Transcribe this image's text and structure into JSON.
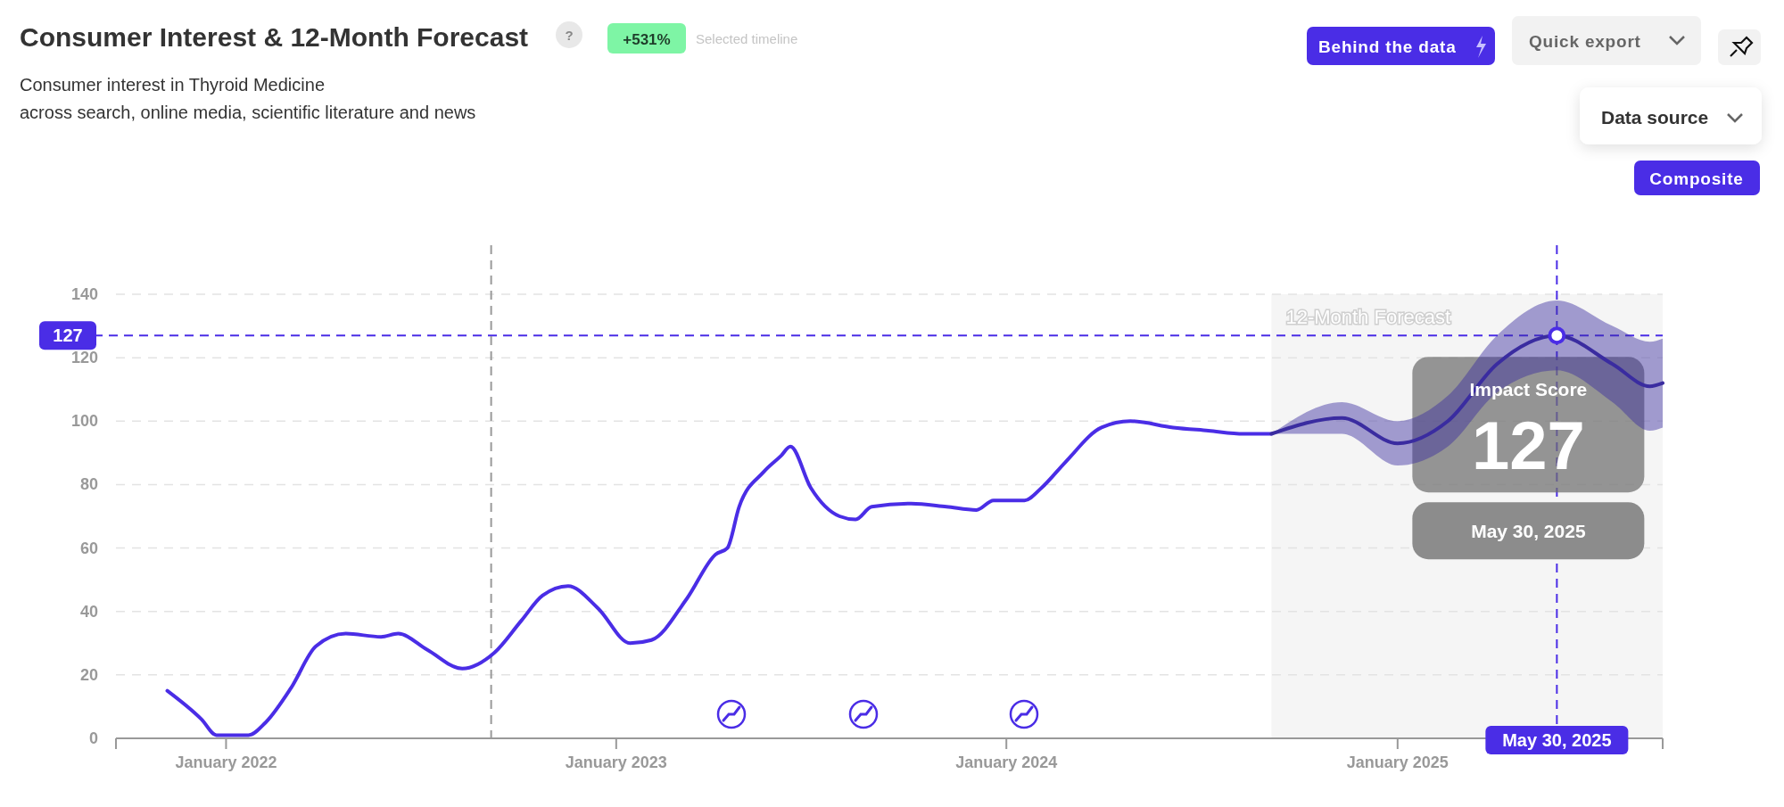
{
  "chart_data": {
    "type": "line",
    "title": "Consumer Interest & 12-Month Forecast",
    "subtitle": "Consumer interest in Thyroid Medicine\nacross search, online media, scientific literature and news",
    "xlim": [
      "2021-09-20",
      "2025-09-06"
    ],
    "xticks": [
      {
        "value": "2022-01-01",
        "label": "January 2022"
      },
      {
        "value": "2023-01-01",
        "label": "January 2023"
      },
      {
        "value": "2024-01-01",
        "label": "January 2024"
      },
      {
        "value": "2025-01-01",
        "label": "January 2025"
      }
    ],
    "ylim": [
      0,
      140
    ],
    "yticks": [
      0,
      20,
      40,
      60,
      80,
      100,
      120,
      140
    ],
    "grid": "y",
    "line_style": "solid",
    "series": [
      {
        "color": "#4a2de6",
        "x": [
          "2021-11-07",
          "2021-12-09",
          "2021-12-23",
          "2022-01-22",
          "2022-02-07",
          "2022-03-03",
          "2022-03-26",
          "2022-04-23",
          "2022-05-26",
          "2022-06-11",
          "2022-07-08",
          "2022-08-10",
          "2022-09-09",
          "2022-10-04",
          "2022-10-24",
          "2022-11-17",
          "2022-12-15",
          "2023-01-14",
          "2023-02-03",
          "2023-03-08",
          "2023-04-04",
          "2023-04-15",
          "2023-04-26",
          "2023-05-19",
          "2023-06-04",
          "2023-06-13",
          "2023-07-02",
          "2023-07-29",
          "2023-08-13",
          "2023-08-28",
          "2023-10-04",
          "2023-11-06",
          "2023-12-04",
          "2023-12-20",
          "2024-01-18",
          "2024-02-03",
          "2024-02-25",
          "2024-03-30",
          "2024-04-26",
          "2024-06-05",
          "2024-07-08",
          "2024-08-10",
          "2024-09-05"
        ],
        "values": [
          15,
          6,
          1,
          1,
          5,
          16,
          29,
          33,
          32,
          33,
          28,
          22,
          27,
          37,
          45,
          48,
          41,
          30,
          31,
          44,
          58,
          60,
          73,
          84,
          89,
          92,
          79,
          70,
          69,
          73,
          74,
          73,
          72,
          75,
          75,
          79,
          87,
          98,
          100,
          98,
          97,
          96,
          96
        ]
      },
      {
        "color": "#3a2ca0",
        "x": [
          "2024-09-05",
          "2024-11-10",
          "2025-01-01",
          "2025-02-17",
          "2025-04-04",
          "2025-05-30",
          "2025-07-21",
          "2025-08-25",
          "2025-09-06"
        ],
        "values": [
          96,
          101,
          93,
          100,
          118,
          127,
          118,
          111,
          112
        ],
        "lower": [
          96,
          96,
          86,
          92,
          109,
          116,
          106,
          97,
          98
        ],
        "upper": [
          96,
          106,
          100,
          108,
          127,
          138,
          130,
          125,
          126
        ]
      },
      {
        "type": "scatter",
        "color": "#4a2de6",
        "marker": "circle",
        "x": [
          "2025-05-30"
        ],
        "values": [
          127
        ]
      }
    ],
    "ref_lines": [
      {
        "axis": "y",
        "value": 127,
        "label": "127",
        "color": "#4a2de6",
        "line_style": "dashed"
      },
      {
        "axis": "x",
        "value": "2025-05-30",
        "label": "May 30, 2025",
        "color": "#4a2de6",
        "line_style": "dashed"
      },
      {
        "axis": "x",
        "value": "2022-09-06",
        "color": "#999999",
        "line_style": "dashed"
      }
    ],
    "bands": [
      {
        "axis": "x",
        "from": "2024-09-05",
        "to": "2025-09-06",
        "label": "12-Month Forecast",
        "color": "#f5f5f5"
      }
    ],
    "annotations": [
      "+531%",
      "Selected timeline",
      "Behind the data",
      "Quick export",
      "Data source",
      "Composite",
      "?",
      "Impact Score",
      "127",
      "May 30, 2025"
    ]
  }
}
